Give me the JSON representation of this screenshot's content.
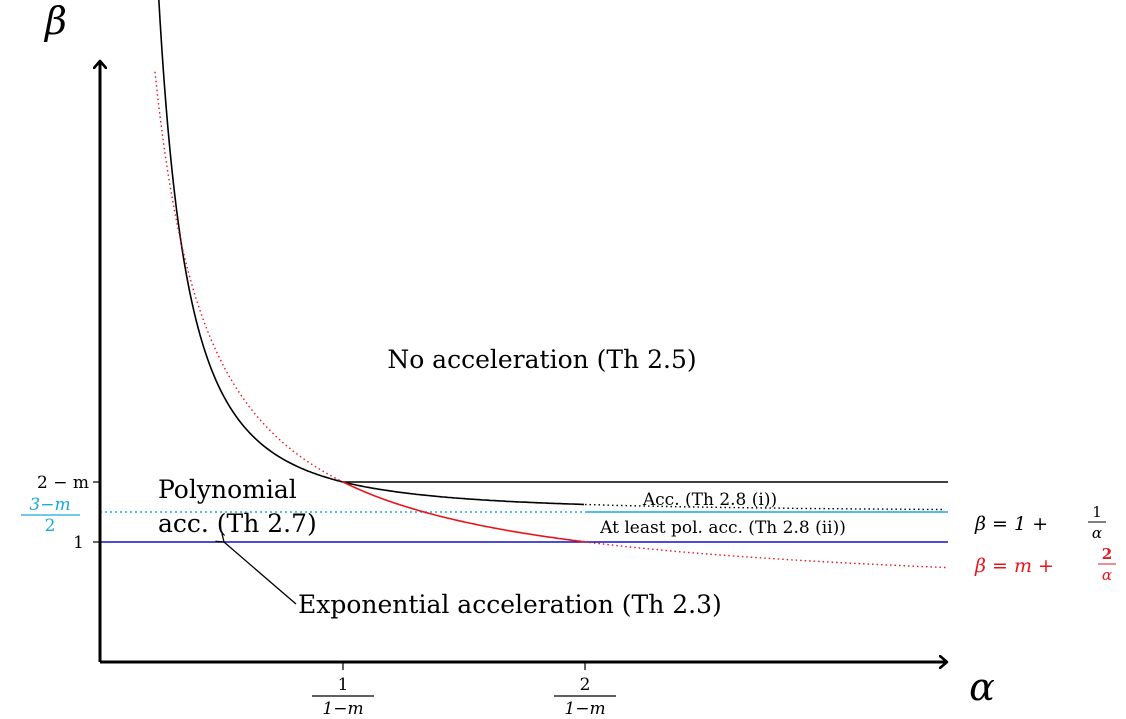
{
  "axes": {
    "x_label": "α",
    "y_label": "β"
  },
  "y_ticks": {
    "two_minus_m": "2 − m",
    "three_minus_m_num": "3−m",
    "three_minus_m_den": "2",
    "one": "1"
  },
  "x_ticks": {
    "one_over_num": "1",
    "one_over_den": "1−m",
    "two_over_num": "2",
    "two_over_den": "1−m"
  },
  "regions": {
    "no_acceleration": "No acceleration (Th 2.5)",
    "polynomial_line1": "Polynomial",
    "polynomial_line2": "acc. (Th 2.7)",
    "acc_th28i": "Acc. (Th 2.8 (i))",
    "at_least_pol": "At least pol. acc. (Th 2.8 (ii))",
    "exponential": "Exponential acceleration (Th 2.3)"
  },
  "curve_labels": {
    "black_prefix": "β = 1 + ",
    "black_num": "1",
    "black_den": "α",
    "red_prefix": "β = m + ",
    "red_num": "2",
    "red_den": "α"
  },
  "colors": {
    "black": "#000000",
    "red": "#e8141c",
    "cyan": "#1aa9dc",
    "blue": "#1010c8"
  }
}
